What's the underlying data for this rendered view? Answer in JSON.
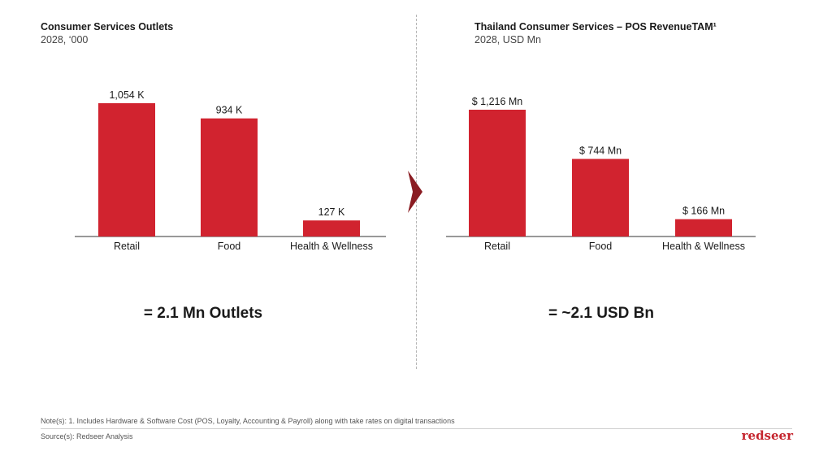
{
  "colors": {
    "bar": "#d1232f",
    "axis": "#333333",
    "text": "#1a1a1a",
    "accent": "#c5252e"
  },
  "left": {
    "title": "Consumer Services Outlets",
    "subtitle": "2028, ‘000",
    "summary": "= 2.1 Mn Outlets"
  },
  "right": {
    "title": "Thailand Consumer Services – POS RevenueTAM¹",
    "subtitle": "2028, USD Mn",
    "summary": "= ~2.1 USD Bn"
  },
  "divider_icon": "chevron-right-icon",
  "footer": {
    "note": "Note(s): 1. Includes Hardware & Software Cost (POS, Loyalty, Accounting & Payroll) along with take rates on digital transactions",
    "source": "Source(s): Redseer Analysis",
    "logo": "redseer"
  },
  "chart_data": [
    {
      "type": "bar",
      "title": "Consumer Services Outlets",
      "subtitle": "2028, ‘000",
      "categories": [
        "Retail",
        "Food",
        "Health & Wellness"
      ],
      "values": [
        1054,
        934,
        127
      ],
      "data_labels": [
        "1,054 K",
        "934 K",
        "127 K"
      ],
      "xlabel": "",
      "ylabel": "",
      "ylim": [
        0,
        1054
      ],
      "grid": false,
      "legend": "none"
    },
    {
      "type": "bar",
      "title": "Thailand Consumer Services – POS RevenueTAM¹",
      "subtitle": "2028, USD Mn",
      "categories": [
        "Retail",
        "Food",
        "Health & Wellness"
      ],
      "values": [
        1216,
        744,
        166
      ],
      "data_labels": [
        "$ 1,216 Mn",
        "$ 744 Mn",
        "$ 166 Mn"
      ],
      "xlabel": "",
      "ylabel": "",
      "ylim": [
        0,
        1216
      ],
      "grid": false,
      "legend": "none"
    }
  ]
}
